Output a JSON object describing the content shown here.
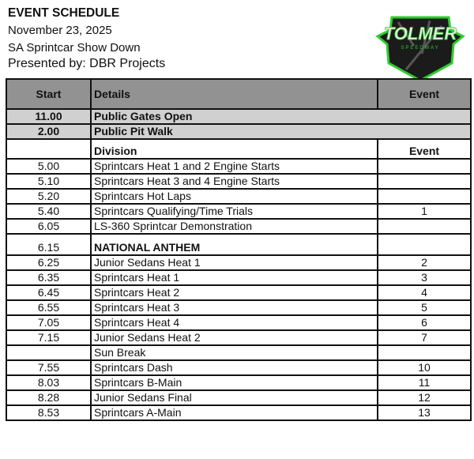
{
  "header": {
    "title": "EVENT SCHEDULE",
    "date": "November 23, 2025",
    "event_name": "SA Sprintcar Show Down",
    "presenter": "Presented by: DBR Projects"
  },
  "logo": {
    "text": "TOLMER",
    "subtext": "SPEEDWAY",
    "colors": {
      "border": "#2ecc2e",
      "fill": "#1b1b1b"
    }
  },
  "table": {
    "headers": {
      "start": "Start",
      "details": "Details",
      "event": "Event"
    },
    "pre_rows": [
      {
        "start": "11.00",
        "details": "Public Gates Open"
      },
      {
        "start": "2.00",
        "details": "Public Pit Walk"
      }
    ],
    "subheaders": {
      "division": "Division",
      "event": "Event"
    },
    "rows": [
      {
        "start": "5.00",
        "details": "Sprintcars Heat 1 and 2 Engine Starts",
        "event": ""
      },
      {
        "start": "5.10",
        "details": "Sprintcars Heat 3 and 4 Engine Starts",
        "event": ""
      },
      {
        "start": "5.20",
        "details": "Sprintcars Hot Laps",
        "event": ""
      },
      {
        "start": "5.40",
        "details": "Sprintcars Qualifying/Time Trials",
        "event": "1"
      },
      {
        "start": "6.05",
        "details": "LS-360 Sprintcar Demonstration",
        "event": ""
      },
      {
        "start": "6.15",
        "details": "NATIONAL ANTHEM",
        "event": ""
      },
      {
        "start": "6.25",
        "details": "Junior Sedans  Heat 1",
        "event": "2"
      },
      {
        "start": "6.35",
        "details": "Sprintcars Heat 1",
        "event": "3"
      },
      {
        "start": "6.45",
        "details": "Sprintcars Heat 2",
        "event": "4"
      },
      {
        "start": "6.55",
        "details": "Sprintcars Heat 3",
        "event": "5"
      },
      {
        "start": "7.05",
        "details": "Sprintcars Heat 4",
        "event": "6"
      },
      {
        "start": "7.15",
        "details": "Junior Sedans  Heat 2",
        "event": "7"
      },
      {
        "start": "",
        "details": "Sun Break",
        "event": ""
      },
      {
        "start": "7.55",
        "details": "Sprintcars Dash",
        "event": "10"
      },
      {
        "start": "8.03",
        "details": "Sprintcars B-Main",
        "event": "11"
      },
      {
        "start": "8.28",
        "details": "Junior Sedans Final",
        "event": "12"
      },
      {
        "start": "8.53",
        "details": "Sprintcars A-Main",
        "event": "13"
      }
    ]
  }
}
